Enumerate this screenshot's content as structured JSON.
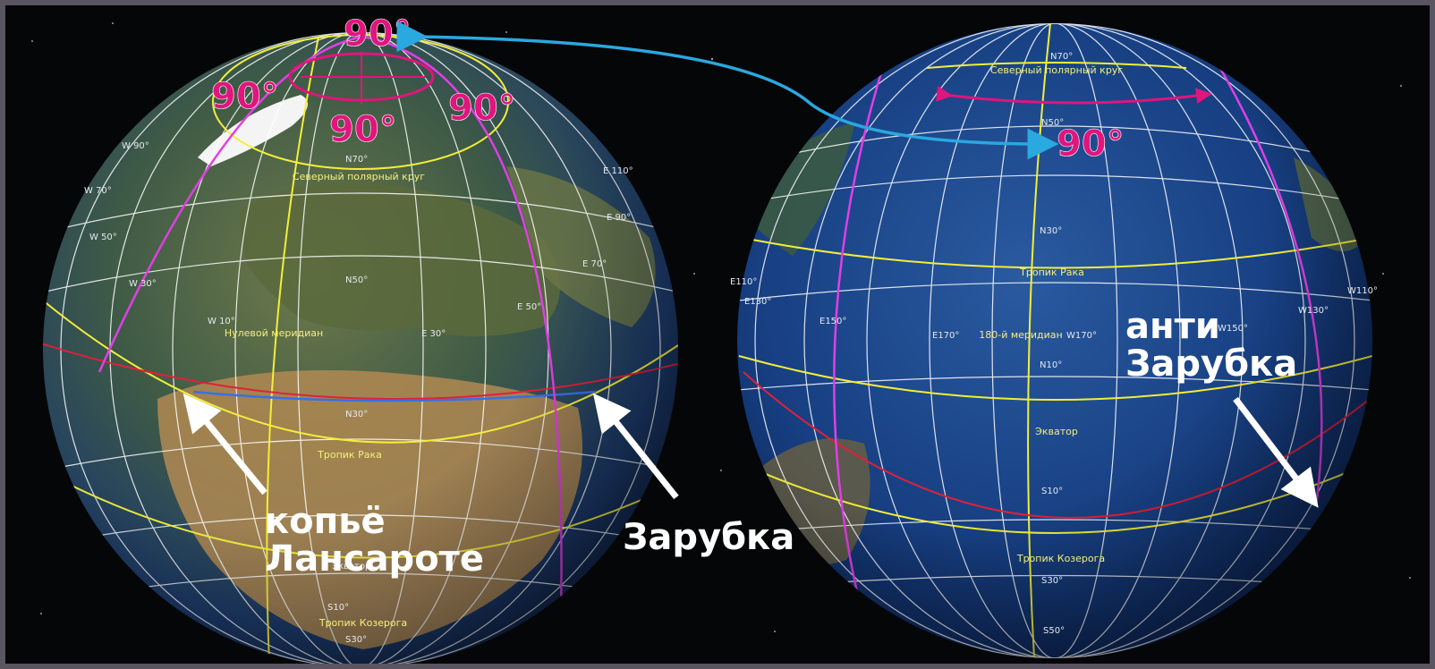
{
  "colors": {
    "graticule": "#ffffff",
    "tropic_lines": "#f3ee3a",
    "great_circle": "#e23ee6",
    "equator_red": "#e0203a",
    "chord_blue": "#3a6ee8",
    "arrow_cyan": "#2aa8e0",
    "degree_labels": "#e0157d",
    "annotation_text": "#ffffff"
  },
  "left_globe": {
    "circle_labels": {
      "arctic_circle": "Северный полярный круг",
      "prime_meridian": "Нулевой меридиан",
      "tropic_cancer": "Тропик Рака",
      "tropic_capricorn": "Тропик Козерога"
    },
    "coord_labels": {
      "w10": "W 10°",
      "w30": "W 30°",
      "w50": "W 50°",
      "w70": "W 70°",
      "w90": "W 90°",
      "e30": "E 30°",
      "e50": "E 50°",
      "e70": "E 70°",
      "e90": "E 90°",
      "e110": "E 110°",
      "n70": "N70°",
      "n50": "N50°",
      "n30": "N30°",
      "s10": "S10°",
      "s30": "S30°",
      "eq": "Экватор"
    },
    "angles": {
      "top": "90°",
      "left": "90°",
      "right": "90°",
      "bottom": "90°"
    }
  },
  "right_globe": {
    "circle_labels": {
      "arctic_circle": "Северный полярный круг",
      "meridian_180": "180-й меридиан",
      "tropic_cancer": "Тропик Рака",
      "equator": "Экватор",
      "tropic_capricorn": "Тропик Козерога"
    },
    "coord_labels": {
      "n70": "N70°",
      "n50": "N50°",
      "n30": "N30°",
      "n10": "N10°",
      "s10": "S10°",
      "s30": "S30°",
      "s50": "S50°",
      "e110": "E110°",
      "e130": "E130°",
      "e150": "E150°",
      "e170": "E170°",
      "w170": "W170°",
      "w150": "W150°",
      "w130": "W130°",
      "w110": "W110°"
    },
    "angle": "90°"
  },
  "annotations": {
    "spear_line1": "копьё",
    "spear_line2": "Лансароте",
    "notch": "Зарубка",
    "anti_line1": "анти",
    "anti_line2": "Зарубка"
  }
}
